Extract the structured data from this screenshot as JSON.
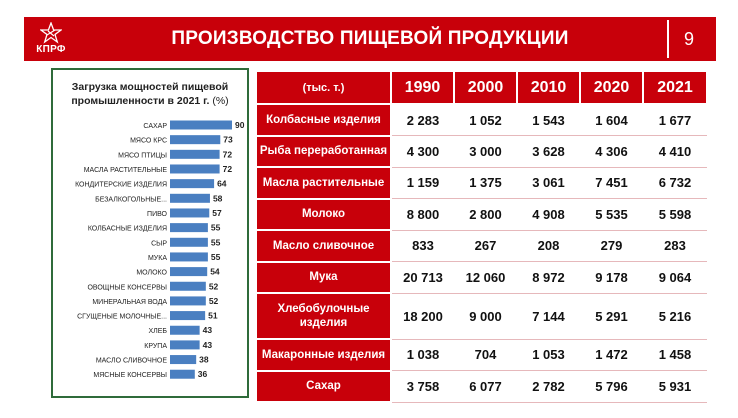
{
  "header": {
    "title": "ПРОИЗВОДСТВО ПИЩЕВОЙ ПРОДУКЦИИ",
    "page_number": "9",
    "logo_text": "КПРФ"
  },
  "chart_data": {
    "type": "bar",
    "orientation": "horizontal",
    "title": "Загрузка мощностей пищевой промышленности в 2021 г.",
    "unit": "(%)",
    "categories": [
      "САХАР",
      "МЯСО КРС",
      "МЯСО ПТИЦЫ",
      "МАСЛА РАСТИТЕЛЬНЫЕ",
      "КОНДИТЕРСКИЕ ИЗДЕЛИЯ",
      "БЕЗАЛКОГОЛЬНЫЕ...",
      "ПИВО",
      "КОЛБАСНЫЕ ИЗДЕЛИЯ",
      "СЫР",
      "МУКА",
      "МОЛОКО",
      "ОВОЩНЫЕ КОНСЕРВЫ",
      "МИНЕРАЛЬНАЯ ВОДА",
      "СГУЩЕНЫЕ МОЛОЧНЫЕ...",
      "ХЛЕБ",
      "КРУПА",
      "МАСЛО СЛИВОЧНОЕ",
      "МЯСНЫЕ КОНСЕРВЫ"
    ],
    "values": [
      90,
      73,
      72,
      72,
      64,
      58,
      57,
      55,
      55,
      55,
      54,
      52,
      52,
      51,
      43,
      43,
      38,
      36
    ],
    "xlim": [
      0,
      90
    ],
    "bar_color": "#4a7fc1"
  },
  "table": {
    "unit_header": "(тыс. т.)",
    "years": [
      "1990",
      "2000",
      "2010",
      "2020",
      "2021"
    ],
    "rows": [
      {
        "label": "Колбасные изделия",
        "values": [
          "2 283",
          "1 052",
          "1 543",
          "1 604",
          "1 677"
        ]
      },
      {
        "label": "Рыба переработанная",
        "values": [
          "4 300",
          "3 000",
          "3 628",
          "4 306",
          "4 410"
        ]
      },
      {
        "label": "Масла растительные",
        "values": [
          "1 159",
          "1 375",
          "3 061",
          "7 451",
          "6 732"
        ]
      },
      {
        "label": "Молоко",
        "values": [
          "8 800",
          "2 800",
          "4 908",
          "5 535",
          "5 598"
        ]
      },
      {
        "label": "Масло сливочное",
        "values": [
          "833",
          "267",
          "208",
          "279",
          "283"
        ]
      },
      {
        "label": "Мука",
        "values": [
          "20 713",
          "12 060",
          "8 972",
          "9 178",
          "9 064"
        ]
      },
      {
        "label": "Хлебобулочные изделия",
        "values": [
          "18 200",
          "9 000",
          "7 144",
          "5 291",
          "5 216"
        ]
      },
      {
        "label": "Макаронные изделия",
        "values": [
          "1 038",
          "704",
          "1 053",
          "1 472",
          "1 458"
        ]
      },
      {
        "label": "Сахар",
        "values": [
          "3 758",
          "6 077",
          "2 782",
          "5 796",
          "5 931"
        ]
      }
    ]
  }
}
